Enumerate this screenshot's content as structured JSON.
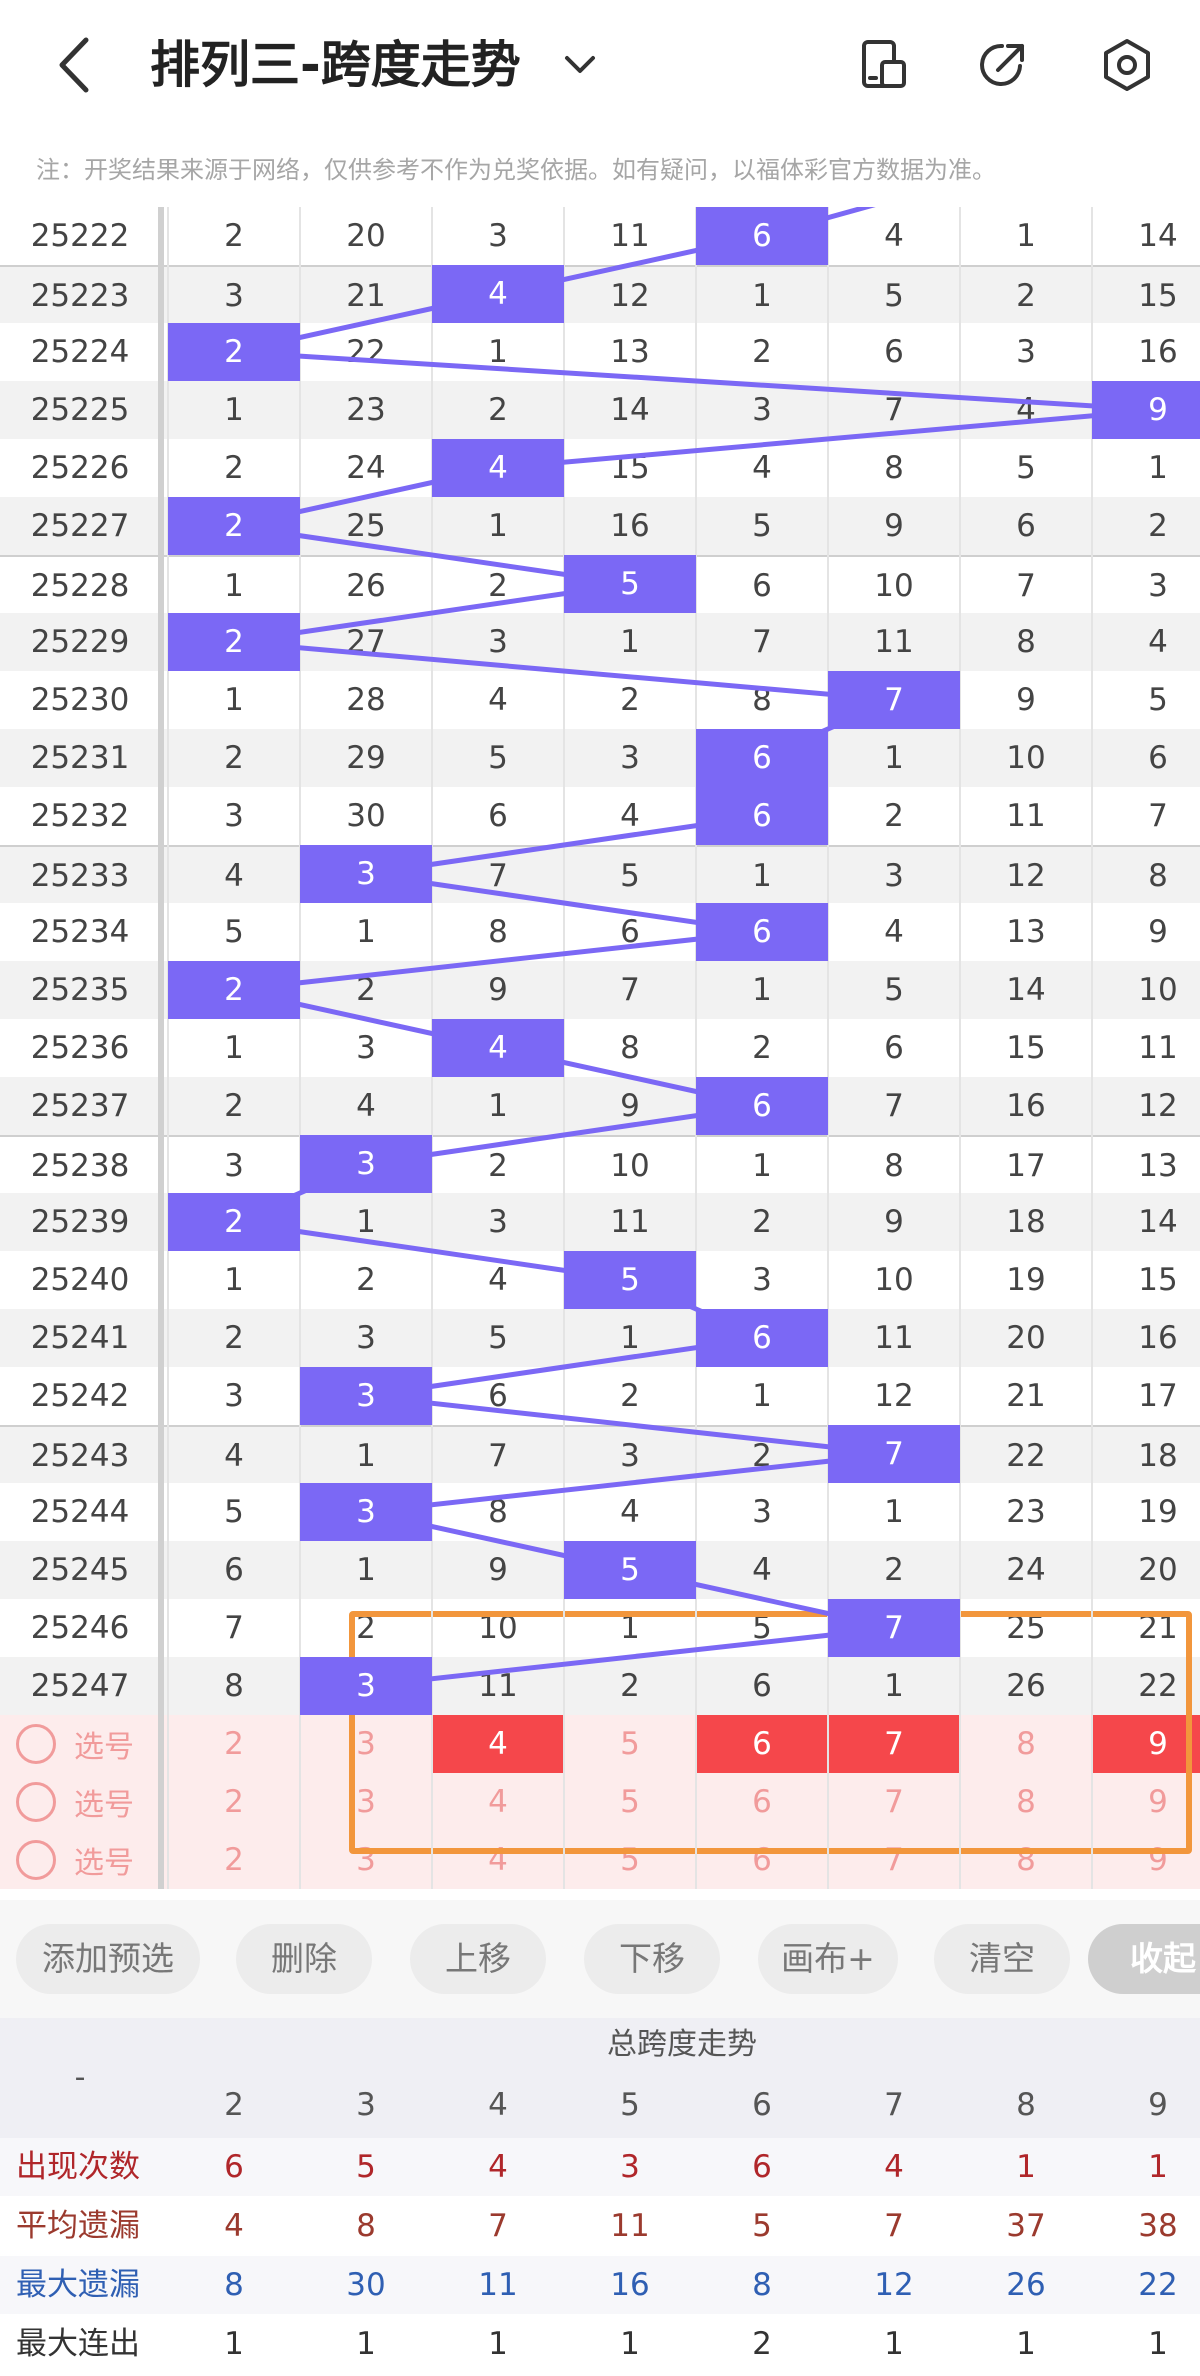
{
  "header": {
    "title": "排列三-跨度走势",
    "icons": [
      "back-icon",
      "chevron-down-icon",
      "screen-icon",
      "share-icon",
      "settings-icon"
    ]
  },
  "notice": "注：开奖结果来源于网络，仅供参考不作为兑奖依据。如有疑问，以福体彩官方数据为准。",
  "columns": [
    2,
    3,
    4,
    5,
    6,
    7,
    8,
    9
  ],
  "draws": [
    {
      "period": "25222",
      "values": [
        "2",
        "20",
        "3",
        "11",
        "6",
        "4",
        "1",
        "14"
      ],
      "span": 6
    },
    {
      "period": "25223",
      "values": [
        "3",
        "21",
        "4",
        "12",
        "1",
        "5",
        "2",
        "15"
      ],
      "span": 4
    },
    {
      "period": "25224",
      "values": [
        "2",
        "22",
        "1",
        "13",
        "2",
        "6",
        "3",
        "16"
      ],
      "span": 2
    },
    {
      "period": "25225",
      "values": [
        "1",
        "23",
        "2",
        "14",
        "3",
        "7",
        "4",
        "9"
      ],
      "span": 9
    },
    {
      "period": "25226",
      "values": [
        "2",
        "24",
        "4",
        "15",
        "4",
        "8",
        "5",
        "1"
      ],
      "span": 4
    },
    {
      "period": "25227",
      "values": [
        "2",
        "25",
        "1",
        "16",
        "5",
        "9",
        "6",
        "2"
      ],
      "span": 2
    },
    {
      "period": "25228",
      "values": [
        "1",
        "26",
        "2",
        "5",
        "6",
        "10",
        "7",
        "3"
      ],
      "span": 5
    },
    {
      "period": "25229",
      "values": [
        "2",
        "27",
        "3",
        "1",
        "7",
        "11",
        "8",
        "4"
      ],
      "span": 2
    },
    {
      "period": "25230",
      "values": [
        "1",
        "28",
        "4",
        "2",
        "8",
        "7",
        "9",
        "5"
      ],
      "span": 7
    },
    {
      "period": "25231",
      "values": [
        "2",
        "29",
        "5",
        "3",
        "6",
        "1",
        "10",
        "6"
      ],
      "span": 6
    },
    {
      "period": "25232",
      "values": [
        "3",
        "30",
        "6",
        "4",
        "6",
        "2",
        "11",
        "7"
      ],
      "span": 6
    },
    {
      "period": "25233",
      "values": [
        "4",
        "3",
        "7",
        "5",
        "1",
        "3",
        "12",
        "8"
      ],
      "span": 3
    },
    {
      "period": "25234",
      "values": [
        "5",
        "1",
        "8",
        "6",
        "6",
        "4",
        "13",
        "9"
      ],
      "span": 6
    },
    {
      "period": "25235",
      "values": [
        "2",
        "2",
        "9",
        "7",
        "1",
        "5",
        "14",
        "10"
      ],
      "span": 2
    },
    {
      "period": "25236",
      "values": [
        "1",
        "3",
        "4",
        "8",
        "2",
        "6",
        "15",
        "11"
      ],
      "span": 4
    },
    {
      "period": "25237",
      "values": [
        "2",
        "4",
        "1",
        "9",
        "6",
        "7",
        "16",
        "12"
      ],
      "span": 6
    },
    {
      "period": "25238",
      "values": [
        "3",
        "3",
        "2",
        "10",
        "1",
        "8",
        "17",
        "13"
      ],
      "span": 3
    },
    {
      "period": "25239",
      "values": [
        "2",
        "1",
        "3",
        "11",
        "2",
        "9",
        "18",
        "14"
      ],
      "span": 2
    },
    {
      "period": "25240",
      "values": [
        "1",
        "2",
        "4",
        "5",
        "3",
        "10",
        "19",
        "15"
      ],
      "span": 5
    },
    {
      "period": "25241",
      "values": [
        "2",
        "3",
        "5",
        "1",
        "6",
        "11",
        "20",
        "16"
      ],
      "span": 6
    },
    {
      "period": "25242",
      "values": [
        "3",
        "3",
        "6",
        "2",
        "1",
        "12",
        "21",
        "17"
      ],
      "span": 3
    },
    {
      "period": "25243",
      "values": [
        "4",
        "1",
        "7",
        "3",
        "2",
        "7",
        "22",
        "18"
      ],
      "span": 7
    },
    {
      "period": "25244",
      "values": [
        "5",
        "3",
        "8",
        "4",
        "3",
        "1",
        "23",
        "19"
      ],
      "span": 3
    },
    {
      "period": "25245",
      "values": [
        "6",
        "1",
        "9",
        "5",
        "4",
        "2",
        "24",
        "20"
      ],
      "span": 5
    },
    {
      "period": "25246",
      "values": [
        "7",
        "2",
        "10",
        "1",
        "5",
        "7",
        "25",
        "21"
      ],
      "span": 7
    },
    {
      "period": "25247",
      "values": [
        "8",
        "3",
        "11",
        "2",
        "6",
        "1",
        "26",
        "22"
      ],
      "span": 3
    }
  ],
  "select_rows": [
    {
      "label": "选号",
      "values": [
        "2",
        "3",
        "4",
        "5",
        "6",
        "7",
        "8",
        "9"
      ],
      "highlighted": [
        4,
        6,
        7,
        9
      ]
    },
    {
      "label": "选号",
      "values": [
        "2",
        "3",
        "4",
        "5",
        "6",
        "7",
        "8",
        "9"
      ],
      "highlighted": []
    },
    {
      "label": "选号",
      "values": [
        "2",
        "3",
        "4",
        "5",
        "6",
        "7",
        "8",
        "9"
      ],
      "highlighted": []
    }
  ],
  "buttons": {
    "add_preselect": "添加预选",
    "delete": "删除",
    "move_up": "上移",
    "move_down": "下移",
    "canvas_plus": "画布+",
    "clear": "清空",
    "collapse": "收起"
  },
  "stats": {
    "corner": "-",
    "title": "总跨度走势",
    "columns": [
      "2",
      "3",
      "4",
      "5",
      "6",
      "7",
      "8",
      "9"
    ],
    "rows": [
      {
        "label": "出现次数",
        "values": [
          "6",
          "5",
          "4",
          "3",
          "6",
          "4",
          "1",
          "1"
        ],
        "color": "#b0262a"
      },
      {
        "label": "平均遗漏",
        "values": [
          "4",
          "8",
          "7",
          "11",
          "5",
          "7",
          "37",
          "38"
        ],
        "color": "#9b3a2e"
      },
      {
        "label": "最大遗漏",
        "values": [
          "8",
          "30",
          "11",
          "16",
          "8",
          "12",
          "26",
          "22"
        ],
        "color": "#2f5fb3"
      },
      {
        "label": "最大连出",
        "values": [
          "1",
          "1",
          "1",
          "1",
          "2",
          "1",
          "1",
          "1"
        ],
        "color": "#333333"
      }
    ]
  },
  "colors": {
    "hit": "#7b68f5",
    "line": "#7b68f5",
    "selected_hit": "#f5474b",
    "highlight_box": "#f2963c"
  }
}
